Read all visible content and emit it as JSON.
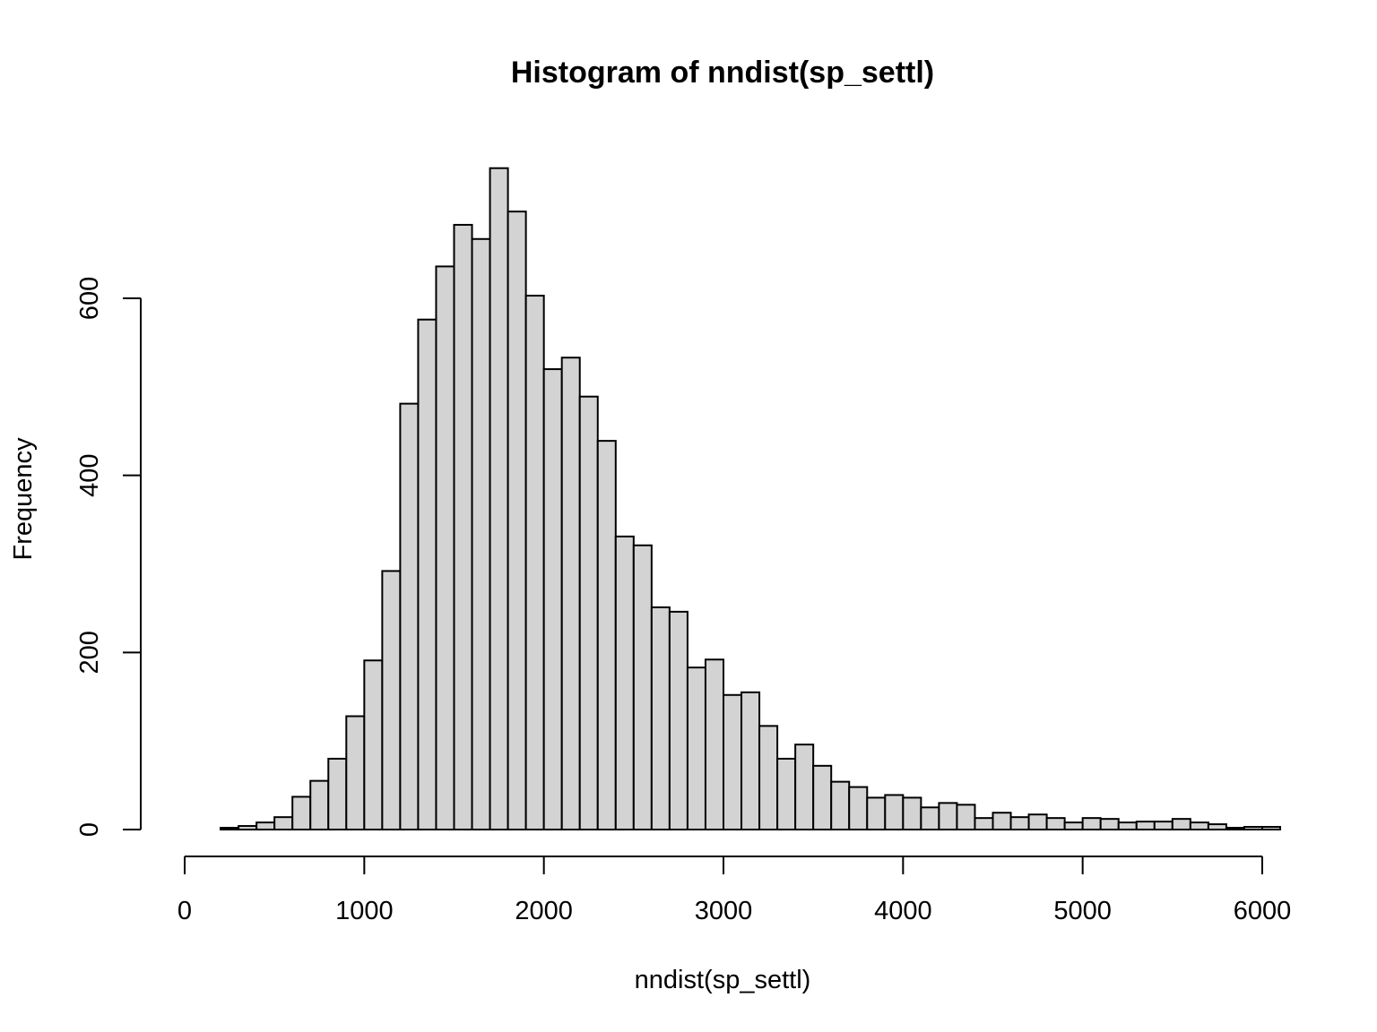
{
  "chart_data": {
    "type": "bar",
    "title": "Histogram of nndist(sp_settl)",
    "xlabel": "nndist(sp_settl)",
    "ylabel": "Frequency",
    "xlim": [
      0,
      6000
    ],
    "ylim": [
      0,
      600
    ],
    "xticks": [
      "0",
      "1000",
      "2000",
      "3000",
      "4000",
      "5000",
      "6000"
    ],
    "yticks": [
      "0",
      "200",
      "400",
      "600"
    ],
    "bin_width": 100,
    "bin_start": 200,
    "values": [
      2,
      4,
      8,
      14,
      37,
      55,
      80,
      128,
      191,
      292,
      481,
      576,
      636,
      683,
      667,
      747,
      698,
      603,
      520,
      533,
      489,
      439,
      331,
      321,
      251,
      246,
      183,
      192,
      152,
      155,
      117,
      80,
      96,
      72,
      54,
      48,
      36,
      39,
      36,
      25,
      30,
      28,
      13,
      19,
      14,
      17,
      13,
      8,
      13,
      12,
      8,
      9,
      9,
      12,
      8,
      6,
      2,
      3,
      3
    ]
  }
}
